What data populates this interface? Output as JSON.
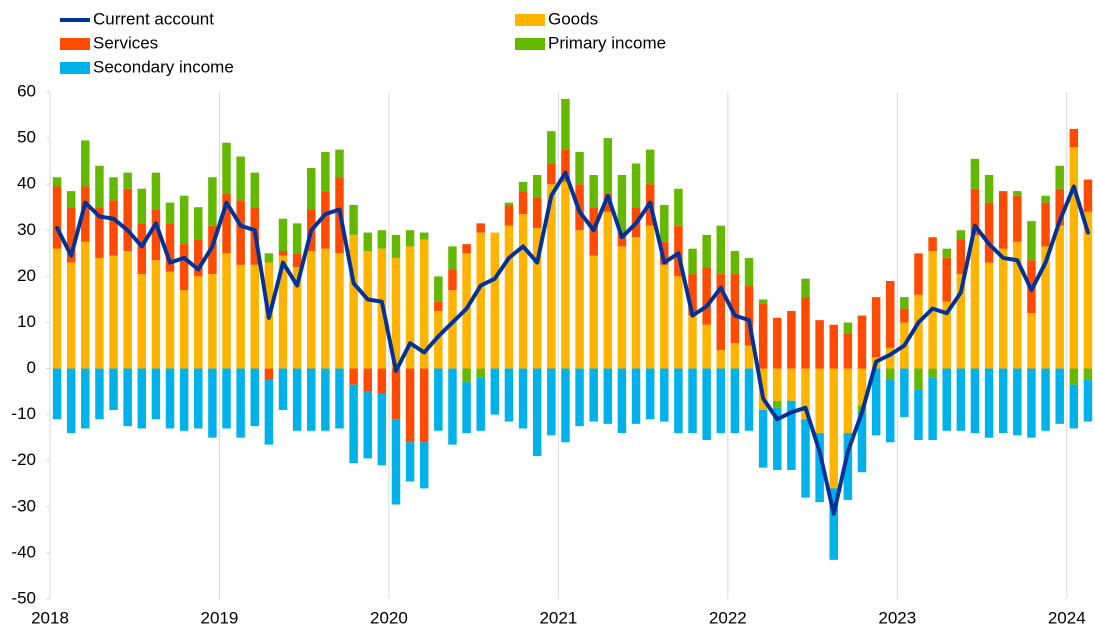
{
  "chart_data": {
    "type": "bar",
    "stacked": true,
    "categories": [
      "2018",
      null,
      null,
      null,
      null,
      null,
      null,
      null,
      null,
      null,
      null,
      null,
      "2019",
      null,
      null,
      null,
      null,
      null,
      null,
      null,
      null,
      null,
      null,
      null,
      "2020",
      null,
      null,
      null,
      null,
      null,
      null,
      null,
      null,
      null,
      null,
      null,
      "2021",
      null,
      null,
      null,
      null,
      null,
      null,
      null,
      null,
      null,
      null,
      null,
      "2022",
      null,
      null,
      null,
      null,
      null,
      null,
      null,
      null,
      null,
      null,
      null,
      "2023",
      null,
      null,
      null,
      null,
      null,
      null,
      null,
      null,
      null,
      null,
      null,
      "2024",
      null
    ],
    "ylim": [
      -50,
      60
    ],
    "yticks": [
      -50,
      -40,
      -30,
      -20,
      -10,
      0,
      10,
      20,
      30,
      40,
      50,
      60
    ],
    "series": [
      {
        "name": "Goods",
        "color": "#ffb400",
        "values": [
          26,
          23,
          27.5,
          24,
          24.5,
          25.5,
          20.5,
          23.5,
          21,
          17,
          20,
          20.5,
          25,
          22.5,
          22.5,
          23,
          24.5,
          22,
          25.5,
          26,
          25,
          29,
          25.5,
          26,
          24,
          26.5,
          28,
          12.5,
          17,
          25,
          29.5,
          29.5,
          31,
          33.5,
          30.5,
          40,
          40.5,
          30,
          24.5,
          34,
          26.5,
          28.5,
          31,
          22.5,
          20,
          11.5,
          9.5,
          4,
          5.5,
          5,
          -9,
          -7,
          -7,
          -11,
          -14,
          -26,
          -14,
          -8,
          2.5,
          4.5,
          10,
          16,
          25.5,
          14.5,
          20.5,
          29,
          23,
          26,
          27.5,
          12,
          26.5,
          31,
          48,
          34
        ]
      },
      {
        "name": "Services",
        "color": "#ff4b00",
        "values": [
          13.5,
          12,
          12,
          11,
          12,
          13.5,
          11,
          11,
          10.5,
          10,
          8,
          10.5,
          13,
          14,
          12.5,
          -2.5,
          1,
          3,
          9,
          12.5,
          16.5,
          -3.5,
          -5,
          -5.5,
          -11,
          -16,
          -16,
          2,
          4.5,
          2,
          2,
          0,
          4.5,
          5,
          6.5,
          4.5,
          7,
          10,
          10.5,
          4,
          3,
          6.5,
          9,
          5,
          11,
          9,
          12.5,
          16.5,
          15,
          13,
          14,
          11,
          12.5,
          15.5,
          10.5,
          9.5,
          7.5,
          11.5,
          13,
          14.5,
          3,
          9,
          3,
          9.5,
          7.5,
          10,
          13,
          12.5,
          10,
          11.5,
          9.5,
          8,
          4,
          7
        ]
      },
      {
        "name": "Primary income",
        "color": "#65b800",
        "values": [
          2,
          3.5,
          10,
          9,
          5,
          3.5,
          7.5,
          8,
          4.5,
          10.5,
          7,
          10.5,
          11,
          9.5,
          7.5,
          2,
          7,
          6.5,
          9,
          8.5,
          6,
          6.5,
          4,
          4,
          5,
          3.5,
          1.5,
          5.5,
          5,
          -3,
          -2,
          0,
          0.5,
          2,
          5,
          7,
          11,
          7,
          7,
          12,
          12.5,
          9.5,
          7.5,
          8,
          8,
          5.5,
          7,
          10.5,
          5,
          6,
          1,
          -1.5,
          0,
          4,
          0,
          0,
          2.5,
          -1.5,
          0,
          -2.5,
          2.5,
          -4.5,
          -2,
          2,
          2,
          6.5,
          6,
          0,
          1,
          8.5,
          1.5,
          5,
          -3.5,
          -2.5
        ]
      },
      {
        "name": "Secondary income",
        "color": "#00b1ea",
        "values": [
          -11,
          -14,
          -13,
          -11,
          -9,
          -12.5,
          -13,
          -11,
          -13,
          -13.5,
          -13,
          -15,
          -13,
          -15,
          -12.5,
          -14,
          -9,
          -13.5,
          -13.5,
          -13.5,
          -13,
          -17,
          -14.5,
          -15.5,
          -18.5,
          -8.5,
          -10,
          -13.5,
          -16.5,
          -11,
          -11.5,
          -10,
          -11.5,
          -13,
          -19,
          -14.5,
          -16,
          -12.5,
          -11.5,
          -12,
          -14,
          -12,
          -11,
          -11.5,
          -14,
          -14,
          -15.5,
          -14,
          -14,
          -13.5,
          -12.5,
          -13.5,
          -15,
          -17,
          -15,
          -15.5,
          -14.5,
          -13,
          -14.5,
          -13.5,
          -10.5,
          -11,
          -13.5,
          -13.5,
          -13.5,
          -14,
          -15,
          -14,
          -14.5,
          -15,
          -13.5,
          -12,
          -9.5,
          -9
        ]
      },
      {
        "name": "Current account",
        "color": "#003299",
        "type": "line",
        "values": [
          30.5,
          24.5,
          36,
          33,
          32.5,
          30,
          26.5,
          31.5,
          23,
          24,
          21.5,
          26.5,
          36,
          31,
          30,
          11,
          23,
          18,
          30,
          33.5,
          34.5,
          18.5,
          15,
          14.5,
          -0.5,
          5.5,
          3.5,
          7,
          10,
          13,
          18,
          19.5,
          24,
          26.5,
          23,
          37.5,
          42.5,
          34,
          30,
          37.5,
          28.5,
          31.5,
          36,
          23,
          25,
          11.5,
          13.5,
          17.5,
          11.5,
          10.5,
          -6.5,
          -11,
          -9.5,
          -8.5,
          -18,
          -31.5,
          -18,
          -9.5,
          1.5,
          3,
          5,
          10,
          13,
          12,
          16.5,
          31,
          27,
          24,
          23.5,
          17,
          23,
          32,
          39.5,
          29.5
        ]
      }
    ]
  }
}
